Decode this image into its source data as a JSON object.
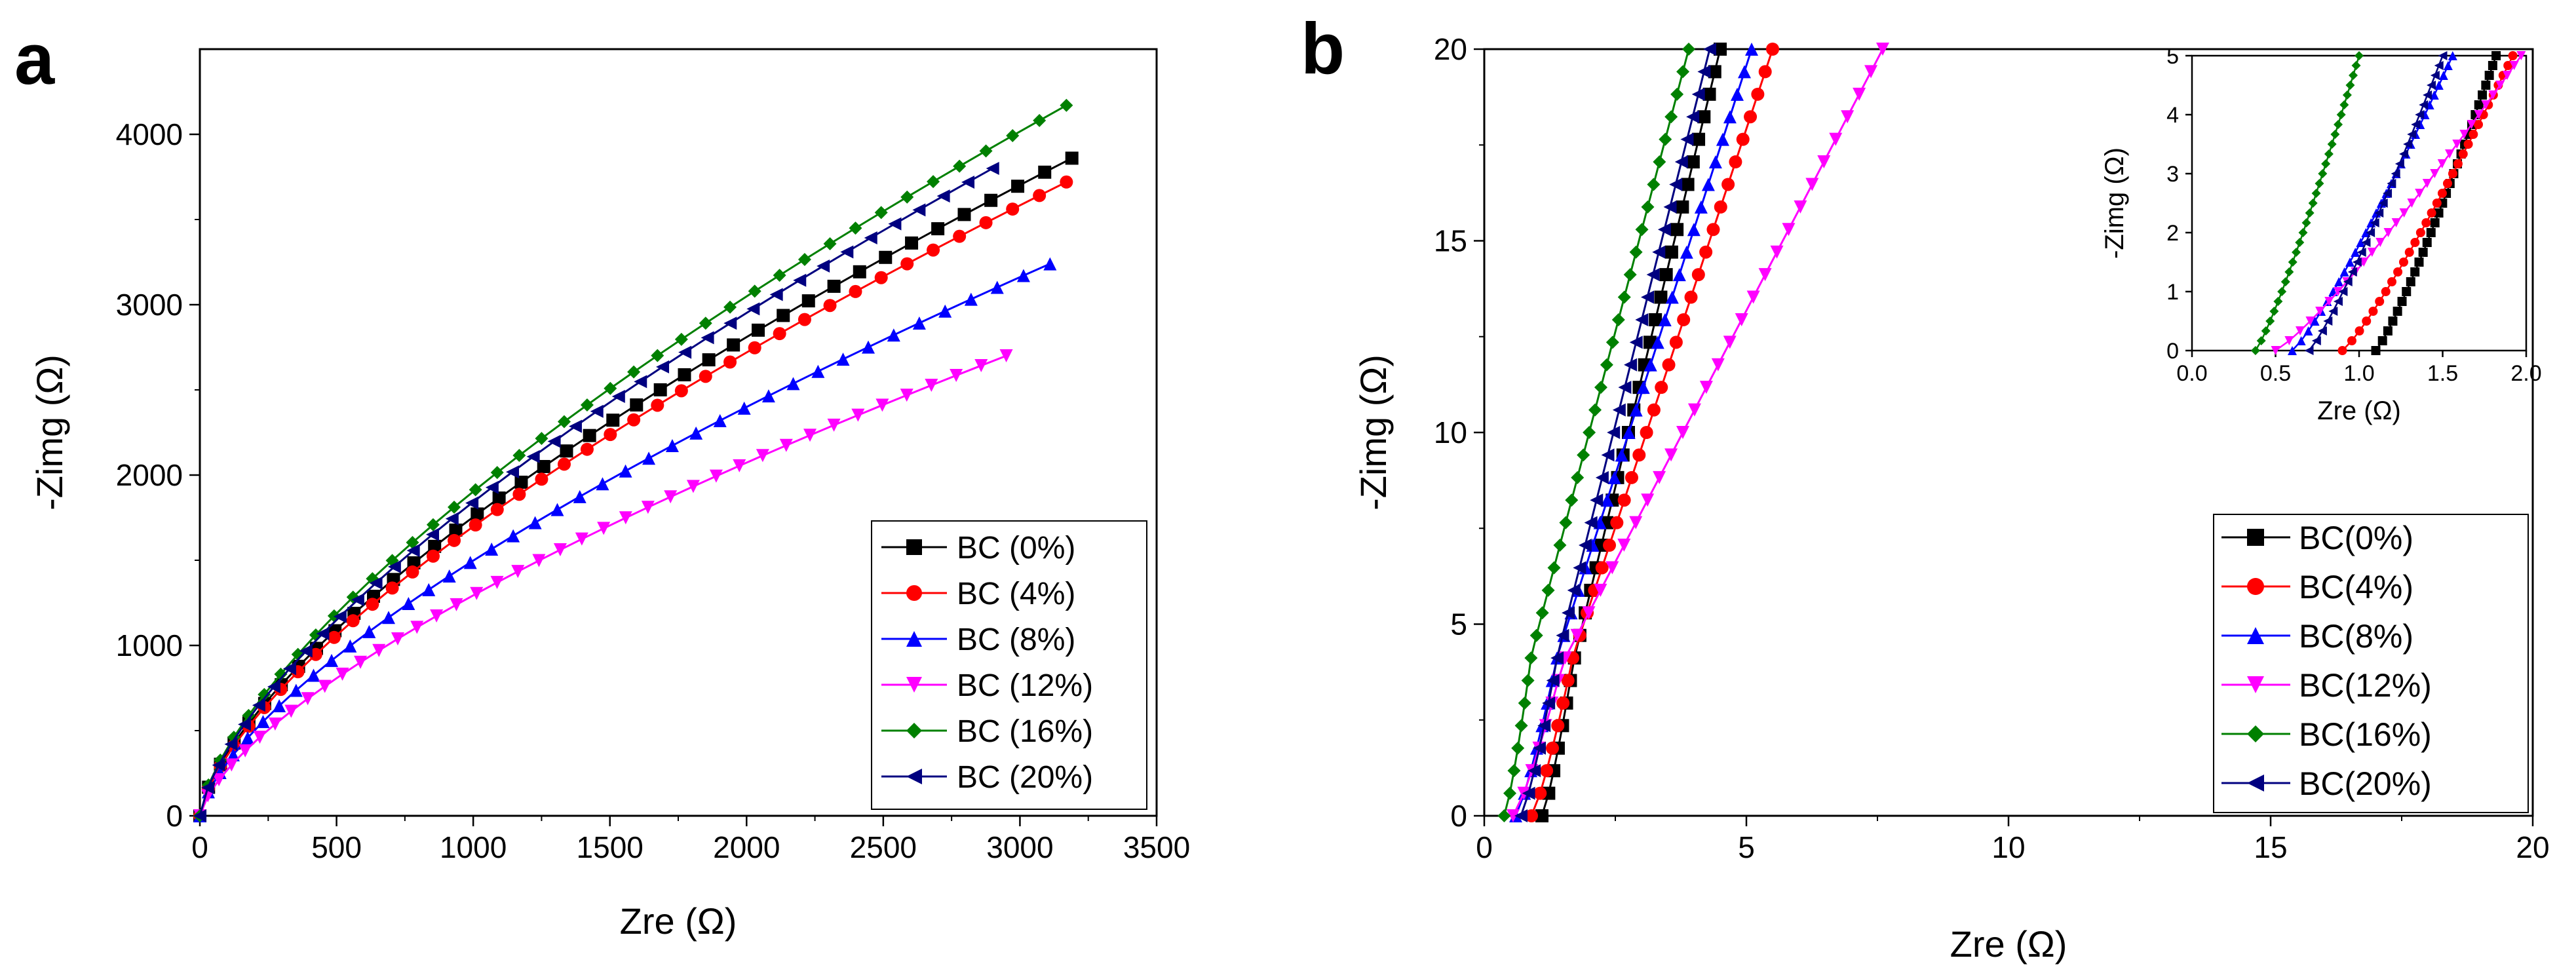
{
  "figure": {
    "panel_a_label": "a",
    "panel_b_label": "b"
  },
  "chart_data": [
    {
      "id": "a",
      "type": "line",
      "title": "",
      "xlabel": "Zre (Ω)",
      "ylabel": "-Zimg (Ω)",
      "xlim": [
        0,
        3500
      ],
      "ylim": [
        0,
        4500
      ],
      "xticks": [
        0,
        500,
        1000,
        1500,
        2000,
        2500,
        3000,
        3500
      ],
      "yticks": [
        0,
        1000,
        2000,
        3000,
        4000
      ],
      "legend_position": "bottom-right",
      "series": [
        {
          "name": "BC (0%)",
          "color": "#000000",
          "marker": "square",
          "x_end": 3190,
          "y_end": 3860,
          "n": 40
        },
        {
          "name": "BC (4%)",
          "color": "#ff0000",
          "marker": "circle",
          "x_end": 3170,
          "y_end": 3720,
          "n": 40
        },
        {
          "name": "BC (8%)",
          "color": "#0000ff",
          "marker": "triangle-up",
          "x_end": 3110,
          "y_end": 3240,
          "n": 40
        },
        {
          "name": "BC (12%)",
          "color": "#ff00ff",
          "marker": "triangle-down",
          "x_end": 2950,
          "y_end": 2700,
          "n": 40
        },
        {
          "name": "BC (16%)",
          "color": "#008000",
          "marker": "diamond",
          "x_end": 3170,
          "y_end": 4170,
          "n": 40
        },
        {
          "name": "BC (20%)",
          "color": "#000080",
          "marker": "triangle-left",
          "x_end": 2900,
          "y_end": 3800,
          "n": 40
        }
      ]
    },
    {
      "id": "b",
      "type": "line",
      "title": "",
      "xlabel": "Zre (Ω)",
      "ylabel": "-Zimg (Ω)",
      "xlim": [
        0,
        20
      ],
      "ylim": [
        0,
        20
      ],
      "xticks": [
        0,
        5,
        10,
        15,
        20
      ],
      "yticks": [
        0,
        5,
        10,
        15,
        20
      ],
      "legend_position": "bottom-right",
      "series": [
        {
          "name": "BC(0%)",
          "color": "#000000",
          "marker": "square",
          "x0": 1.1,
          "x_end": 4.5,
          "knee_x": 1.7,
          "knee_y": 4.0
        },
        {
          "name": "BC(4%)",
          "color": "#ff0000",
          "marker": "circle",
          "x0": 0.9,
          "x_end": 5.5,
          "knee_x": 1.7,
          "knee_y": 4.2
        },
        {
          "name": "BC(8%)",
          "color": "#0000ff",
          "marker": "triangle-up",
          "x0": 0.6,
          "x_end": 5.1,
          "knee_x": 1.4,
          "knee_y": 4.2
        },
        {
          "name": "BC(12%)",
          "color": "#ff00ff",
          "marker": "triangle-down",
          "x0": 0.55,
          "x_end": 7.6,
          "knee_x": 1.5,
          "knee_y": 4.0
        },
        {
          "name": "BC(16%)",
          "color": "#008000",
          "marker": "diamond",
          "x0": 0.38,
          "x_end": 3.9,
          "knee_x": 0.9,
          "knee_y": 4.2
        },
        {
          "name": "BC(20%)",
          "color": "#000080",
          "marker": "triangle-left",
          "x0": 0.7,
          "x_end": 4.3,
          "knee_x": 1.4,
          "knee_y": 4.2
        }
      ],
      "inset": {
        "xlabel": "Zre (Ω)",
        "ylabel": "-Zimg (Ω)",
        "xlim": [
          0,
          2
        ],
        "ylim": [
          0,
          5
        ],
        "xticks": [
          "0.0",
          "0.5",
          "1.0",
          "1.5",
          "2.0"
        ],
        "yticks": [
          "0",
          "1",
          "2",
          "3",
          "4",
          "5"
        ],
        "series": [
          {
            "name": "BC(0%)",
            "x0": 1.1,
            "x_end": 1.82
          },
          {
            "name": "BC(4%)",
            "x0": 0.9,
            "x_end": 1.92
          },
          {
            "name": "BC(8%)",
            "x0": 0.6,
            "x_end": 1.56
          },
          {
            "name": "BC(12%)",
            "x0": 0.5,
            "x_end": 1.97
          },
          {
            "name": "BC(16%)",
            "x0": 0.38,
            "x_end": 1.0
          },
          {
            "name": "BC(20%)",
            "x0": 0.7,
            "x_end": 1.5
          }
        ]
      }
    }
  ]
}
